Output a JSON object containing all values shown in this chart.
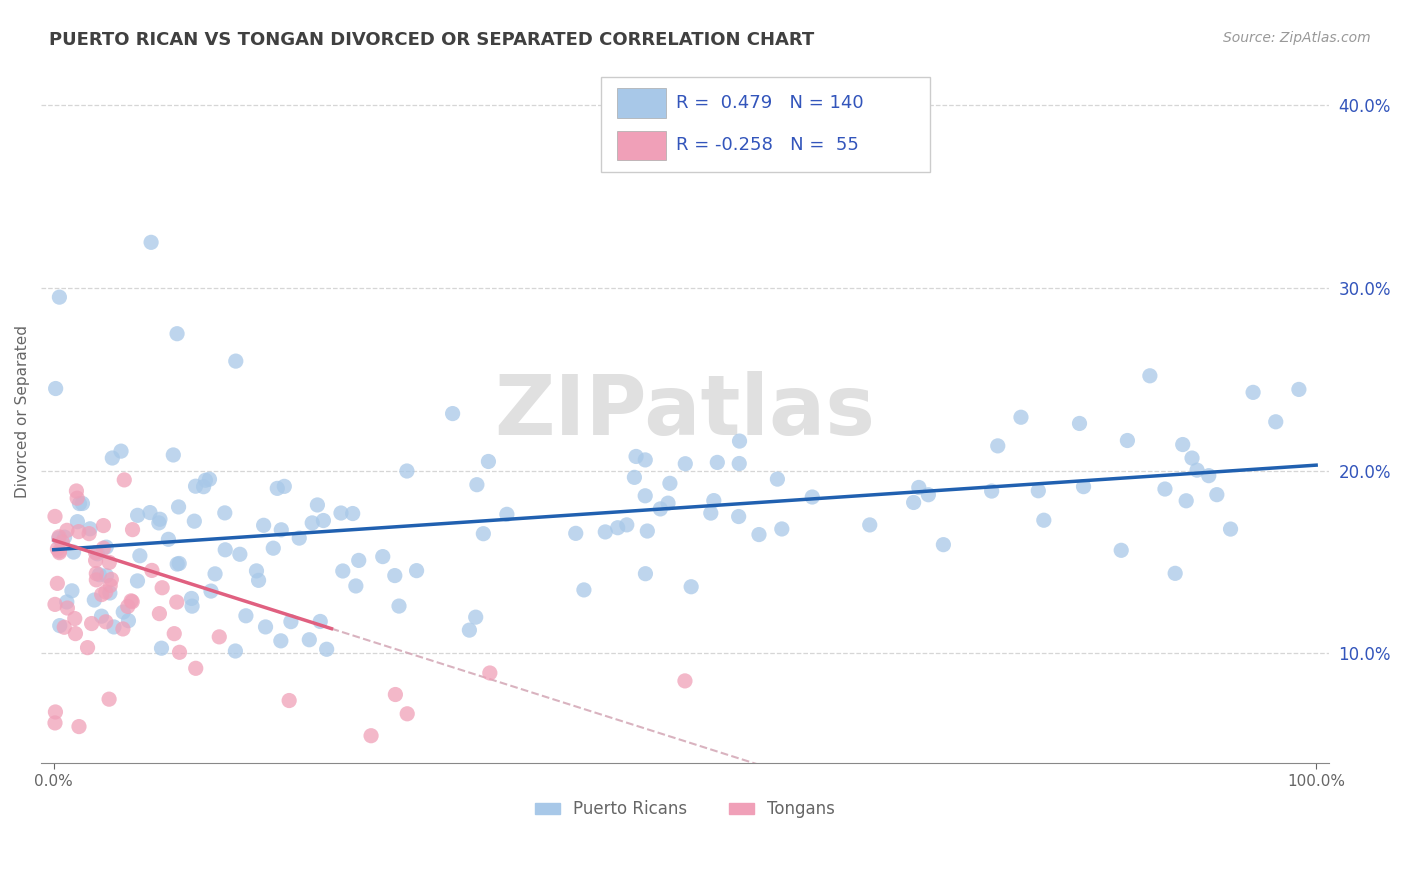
{
  "title": "PUERTO RICAN VS TONGAN DIVORCED OR SEPARATED CORRELATION CHART",
  "source_text": "Source: ZipAtlas.com",
  "ylabel": "Divorced or Separated",
  "legend_label1": "Puerto Ricans",
  "legend_label2": "Tongans",
  "R1": 0.479,
  "N1": 140,
  "R2": -0.258,
  "N2": 55,
  "xlim": [
    -0.01,
    1.01
  ],
  "ylim": [
    0.04,
    0.425
  ],
  "yticks": [
    0.1,
    0.2,
    0.3,
    0.4
  ],
  "ytick_labels": [
    "10.0%",
    "20.0%",
    "30.0%",
    "40.0%"
  ],
  "blue_color": "#A8C8E8",
  "pink_color": "#F0A0B8",
  "blue_line_color": "#2060B0",
  "pink_line_color": "#E06080",
  "pink_dashed_color": "#D0A0B0",
  "title_color": "#404040",
  "title_fontsize": 13,
  "watermark": "ZIPatlas",
  "watermark_color": "#E0E0E0",
  "background_color": "#FFFFFF",
  "grid_color": "#CCCCCC",
  "legend_text_color": "#3355BB",
  "axis_color": "#888888"
}
